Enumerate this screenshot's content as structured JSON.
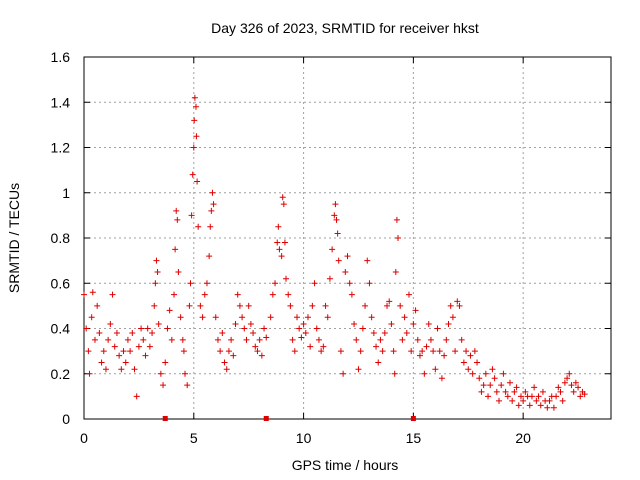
{
  "chart_data": {
    "type": "scatter",
    "title": "Day 326 of 2023, SRMTID for receiver hkst",
    "xlabel": "GPS time / hours",
    "ylabel": "SRMTID / TECUs",
    "xlim": [
      0,
      24
    ],
    "ylim": [
      0,
      1.6
    ],
    "xticks": [
      0,
      5,
      10,
      15,
      20
    ],
    "yticks": [
      0,
      0.2,
      0.4,
      0.6,
      0.8,
      1,
      1.2,
      1.4,
      1.6
    ],
    "x_tick_labels": [
      "0",
      "5",
      "10",
      "15",
      "20"
    ],
    "y_tick_labels": [
      "0",
      "0.2",
      "0.4",
      "0.6",
      "0.8",
      "1",
      "1.2",
      "1.4",
      "1.6"
    ],
    "grid": true,
    "marker": "+",
    "color": "#dd0000",
    "series": [
      {
        "name": "SRMTID",
        "points": [
          [
            0.0,
            0.55
          ],
          [
            0.1,
            0.4
          ],
          [
            0.2,
            0.3
          ],
          [
            0.25,
            0.2
          ],
          [
            0.35,
            0.45
          ],
          [
            0.4,
            0.56
          ],
          [
            0.5,
            0.35
          ],
          [
            0.6,
            0.5
          ],
          [
            0.7,
            0.38
          ],
          [
            0.8,
            0.25
          ],
          [
            0.9,
            0.3
          ],
          [
            1.0,
            0.22
          ],
          [
            1.1,
            0.35
          ],
          [
            1.2,
            0.42
          ],
          [
            1.3,
            0.55
          ],
          [
            1.4,
            0.32
          ],
          [
            1.5,
            0.38
          ],
          [
            1.6,
            0.28
          ],
          [
            1.7,
            0.22
          ],
          [
            1.8,
            0.3
          ],
          [
            1.9,
            0.25
          ],
          [
            2.0,
            0.35
          ],
          [
            2.1,
            0.3
          ],
          [
            2.2,
            0.38
          ],
          [
            2.3,
            0.22
          ],
          [
            2.4,
            0.1
          ],
          [
            2.5,
            0.32
          ],
          [
            2.6,
            0.4
          ],
          [
            2.7,
            0.35
          ],
          [
            2.8,
            0.28
          ],
          [
            2.9,
            0.4
          ],
          [
            3.0,
            0.32
          ],
          [
            3.1,
            0.38
          ],
          [
            3.2,
            0.5
          ],
          [
            3.25,
            0.6
          ],
          [
            3.3,
            0.7
          ],
          [
            3.35,
            0.65
          ],
          [
            3.4,
            0.42
          ],
          [
            3.5,
            0.2
          ],
          [
            3.6,
            0.15
          ],
          [
            3.7,
            0.25
          ],
          [
            3.8,
            0.4
          ],
          [
            3.9,
            0.48
          ],
          [
            4.0,
            0.35
          ],
          [
            4.1,
            0.55
          ],
          [
            4.15,
            0.75
          ],
          [
            4.2,
            0.92
          ],
          [
            4.25,
            0.88
          ],
          [
            4.3,
            0.65
          ],
          [
            4.4,
            0.45
          ],
          [
            4.5,
            0.35
          ],
          [
            4.55,
            0.3
          ],
          [
            4.6,
            0.2
          ],
          [
            4.7,
            0.15
          ],
          [
            4.8,
            0.5
          ],
          [
            4.85,
            0.6
          ],
          [
            4.9,
            0.9
          ],
          [
            4.95,
            1.08
          ],
          [
            5.0,
            1.2
          ],
          [
            5.02,
            1.32
          ],
          [
            5.05,
            1.42
          ],
          [
            5.1,
            1.38
          ],
          [
            5.12,
            1.25
          ],
          [
            5.15,
            1.05
          ],
          [
            5.2,
            0.85
          ],
          [
            5.3,
            0.5
          ],
          [
            5.4,
            0.45
          ],
          [
            5.5,
            0.55
          ],
          [
            5.6,
            0.6
          ],
          [
            5.7,
            0.72
          ],
          [
            5.75,
            0.85
          ],
          [
            5.8,
            0.92
          ],
          [
            5.85,
            1.0
          ],
          [
            5.9,
            0.95
          ],
          [
            6.0,
            0.45
          ],
          [
            6.1,
            0.35
          ],
          [
            6.2,
            0.3
          ],
          [
            6.3,
            0.38
          ],
          [
            6.4,
            0.25
          ],
          [
            6.5,
            0.22
          ],
          [
            6.6,
            0.3
          ],
          [
            6.7,
            0.35
          ],
          [
            6.8,
            0.28
          ],
          [
            6.9,
            0.42
          ],
          [
            7.0,
            0.55
          ],
          [
            7.1,
            0.5
          ],
          [
            7.2,
            0.45
          ],
          [
            7.3,
            0.4
          ],
          [
            7.4,
            0.35
          ],
          [
            7.5,
            0.5
          ],
          [
            7.6,
            0.42
          ],
          [
            7.7,
            0.38
          ],
          [
            7.8,
            0.32
          ],
          [
            7.9,
            0.3
          ],
          [
            8.0,
            0.35
          ],
          [
            8.1,
            0.28
          ],
          [
            8.2,
            0.4
          ],
          [
            8.3,
            0.36
          ],
          [
            8.5,
            0.45
          ],
          [
            8.6,
            0.55
          ],
          [
            8.7,
            0.6
          ],
          [
            8.8,
            0.78
          ],
          [
            8.85,
            0.85
          ],
          [
            8.9,
            0.75
          ],
          [
            9.0,
            0.72
          ],
          [
            9.05,
            0.98
          ],
          [
            9.1,
            0.95
          ],
          [
            9.15,
            0.78
          ],
          [
            9.2,
            0.62
          ],
          [
            9.3,
            0.55
          ],
          [
            9.4,
            0.5
          ],
          [
            9.5,
            0.35
          ],
          [
            9.6,
            0.3
          ],
          [
            9.7,
            0.45
          ],
          [
            9.8,
            0.4
          ],
          [
            9.9,
            0.36
          ],
          [
            10.0,
            0.42
          ],
          [
            10.1,
            0.38
          ],
          [
            10.2,
            0.45
          ],
          [
            10.3,
            0.32
          ],
          [
            10.4,
            0.5
          ],
          [
            10.5,
            0.6
          ],
          [
            10.6,
            0.4
          ],
          [
            10.7,
            0.35
          ],
          [
            10.8,
            0.3
          ],
          [
            10.9,
            0.32
          ],
          [
            11.0,
            0.5
          ],
          [
            11.1,
            0.45
          ],
          [
            11.2,
            0.62
          ],
          [
            11.3,
            0.75
          ],
          [
            11.4,
            0.9
          ],
          [
            11.45,
            0.95
          ],
          [
            11.5,
            0.88
          ],
          [
            11.55,
            0.82
          ],
          [
            11.6,
            0.7
          ],
          [
            11.7,
            0.3
          ],
          [
            11.8,
            0.2
          ],
          [
            11.9,
            0.65
          ],
          [
            12.0,
            0.72
          ],
          [
            12.1,
            0.6
          ],
          [
            12.2,
            0.55
          ],
          [
            12.3,
            0.42
          ],
          [
            12.4,
            0.35
          ],
          [
            12.5,
            0.22
          ],
          [
            12.6,
            0.3
          ],
          [
            12.7,
            0.4
          ],
          [
            12.8,
            0.5
          ],
          [
            12.9,
            0.7
          ],
          [
            13.0,
            0.6
          ],
          [
            13.1,
            0.45
          ],
          [
            13.2,
            0.38
          ],
          [
            13.3,
            0.32
          ],
          [
            13.4,
            0.25
          ],
          [
            13.5,
            0.35
          ],
          [
            13.6,
            0.3
          ],
          [
            13.7,
            0.38
          ],
          [
            13.8,
            0.5
          ],
          [
            13.9,
            0.52
          ],
          [
            14.0,
            0.42
          ],
          [
            14.1,
            0.3
          ],
          [
            14.15,
            0.2
          ],
          [
            14.2,
            0.65
          ],
          [
            14.25,
            0.88
          ],
          [
            14.3,
            0.8
          ],
          [
            14.4,
            0.5
          ],
          [
            14.5,
            0.35
          ],
          [
            14.6,
            0.45
          ],
          [
            14.7,
            0.38
          ],
          [
            14.8,
            0.55
          ],
          [
            14.9,
            0.3
          ],
          [
            15.0,
            0.42
          ],
          [
            15.1,
            0.48
          ],
          [
            15.2,
            0.35
          ],
          [
            15.3,
            0.28
          ],
          [
            15.4,
            0.3
          ],
          [
            15.5,
            0.2
          ],
          [
            15.6,
            0.32
          ],
          [
            15.7,
            0.42
          ],
          [
            15.8,
            0.35
          ],
          [
            15.9,
            0.3
          ],
          [
            16.0,
            0.22
          ],
          [
            16.1,
            0.4
          ],
          [
            16.2,
            0.3
          ],
          [
            16.3,
            0.18
          ],
          [
            16.4,
            0.28
          ],
          [
            16.5,
            0.35
          ],
          [
            16.6,
            0.42
          ],
          [
            16.7,
            0.5
          ],
          [
            16.8,
            0.45
          ],
          [
            16.9,
            0.3
          ],
          [
            17.0,
            0.52
          ],
          [
            17.1,
            0.5
          ],
          [
            17.2,
            0.35
          ],
          [
            17.3,
            0.25
          ],
          [
            17.4,
            0.3
          ],
          [
            17.5,
            0.22
          ],
          [
            17.6,
            0.28
          ],
          [
            17.7,
            0.2
          ],
          [
            17.8,
            0.3
          ],
          [
            17.9,
            0.25
          ],
          [
            18.0,
            0.18
          ],
          [
            18.1,
            0.12
          ],
          [
            18.2,
            0.15
          ],
          [
            18.3,
            0.2
          ],
          [
            18.4,
            0.1
          ],
          [
            18.5,
            0.15
          ],
          [
            18.6,
            0.22
          ],
          [
            18.7,
            0.18
          ],
          [
            18.8,
            0.12
          ],
          [
            18.9,
            0.08
          ],
          [
            19.0,
            0.15
          ],
          [
            19.1,
            0.2
          ],
          [
            19.2,
            0.12
          ],
          [
            19.3,
            0.1
          ],
          [
            19.4,
            0.16
          ],
          [
            19.5,
            0.08
          ],
          [
            19.6,
            0.12
          ],
          [
            19.7,
            0.14
          ],
          [
            19.8,
            0.06
          ],
          [
            19.9,
            0.1
          ],
          [
            20.0,
            0.08
          ],
          [
            20.1,
            0.12
          ],
          [
            20.2,
            0.1
          ],
          [
            20.3,
            0.06
          ],
          [
            20.4,
            0.1
          ],
          [
            20.5,
            0.14
          ],
          [
            20.6,
            0.08
          ],
          [
            20.7,
            0.1
          ],
          [
            20.8,
            0.06
          ],
          [
            20.9,
            0.12
          ],
          [
            21.0,
            0.08
          ],
          [
            21.1,
            0.05
          ],
          [
            21.2,
            0.08
          ],
          [
            21.3,
            0.1
          ],
          [
            21.4,
            0.05
          ],
          [
            21.5,
            0.1
          ],
          [
            21.6,
            0.14
          ],
          [
            21.7,
            0.12
          ],
          [
            21.8,
            0.08
          ],
          [
            21.9,
            0.16
          ],
          [
            22.0,
            0.18
          ],
          [
            22.1,
            0.2
          ],
          [
            22.2,
            0.15
          ],
          [
            22.3,
            0.12
          ],
          [
            22.4,
            0.16
          ],
          [
            22.5,
            0.14
          ],
          [
            22.6,
            0.1
          ],
          [
            22.7,
            0.12
          ],
          [
            22.8,
            0.11
          ]
        ]
      }
    ],
    "zero_gap_markers": [
      3.7,
      8.3,
      15.0
    ]
  }
}
